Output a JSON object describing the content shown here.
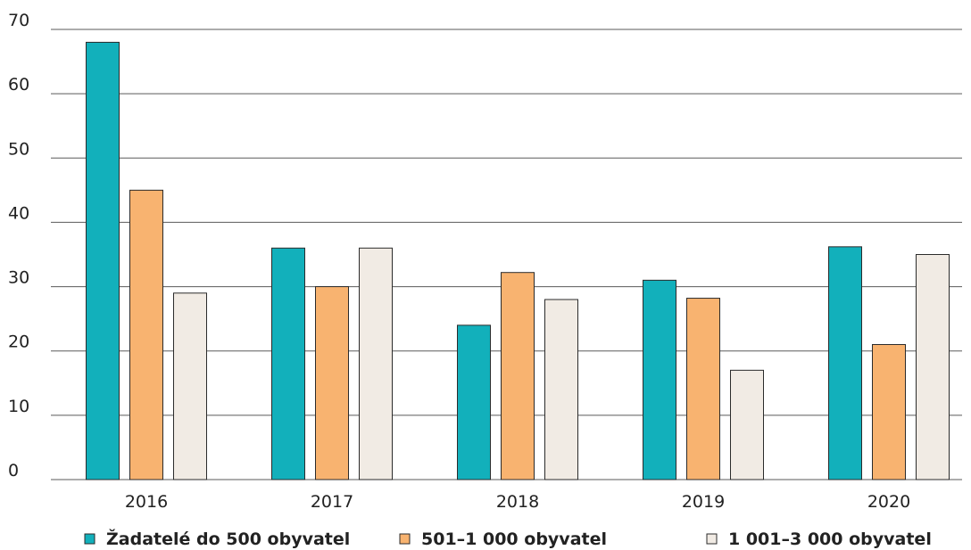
{
  "chart_data": {
    "type": "bar",
    "title": "",
    "xlabel": "",
    "ylabel": "",
    "categories": [
      "2016",
      "2017",
      "2018",
      "2019",
      "2020"
    ],
    "series": [
      {
        "name": "Žadatelé do 500 obyvatel",
        "values": [
          68,
          36,
          24,
          31,
          36.2
        ],
        "color": "#12b0bb"
      },
      {
        "name": "501–1 000 obyvatel",
        "values": [
          45,
          30,
          32.2,
          28.2,
          21
        ],
        "color": "#f8b370"
      },
      {
        "name": "1 001–3 000 obyvatel",
        "values": [
          29,
          36,
          28,
          17,
          35
        ],
        "color": "#f1ebe4"
      }
    ],
    "ylim": [
      0,
      70
    ],
    "yticks": [
      0,
      10,
      20,
      30,
      40,
      50,
      60,
      70
    ],
    "grid": true,
    "legend_position": "bottom"
  }
}
